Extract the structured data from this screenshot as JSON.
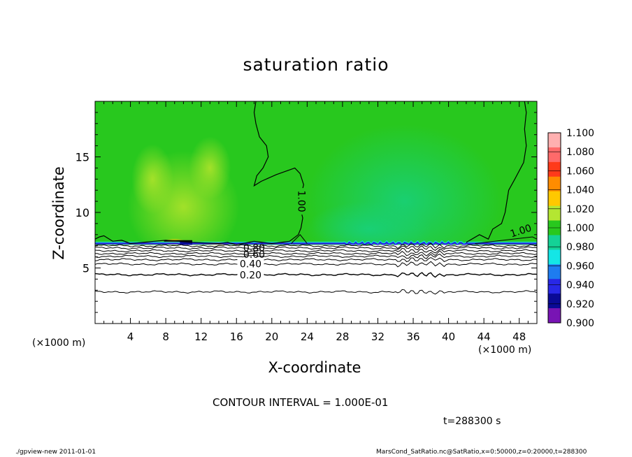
{
  "chart_data": {
    "type": "heatmap",
    "title": "saturation ratio",
    "xlabel": "X-coordinate",
    "ylabel": "Z-coordinate",
    "x_unit_label": "(×1000 m)",
    "xlim": [
      0,
      50
    ],
    "ylim": [
      0,
      20
    ],
    "x_ticks": [
      4,
      8,
      12,
      16,
      20,
      24,
      28,
      32,
      36,
      40,
      44,
      48
    ],
    "y_ticks": [
      5,
      10,
      15
    ],
    "colorbar": {
      "levels": [
        "1.100",
        "1.080",
        "1.060",
        "1.040",
        "1.020",
        "1.000",
        "0.980",
        "0.960",
        "0.940",
        "0.920",
        "0.900"
      ],
      "colors": [
        "#ffb0b0",
        "#ff6a6a",
        "#ff3a1a",
        "#ff8c00",
        "#ffc800",
        "#b4e632",
        "#28c81e",
        "#14d296",
        "#14e6e6",
        "#1e7cf0",
        "#2828e6",
        "#0a0a96",
        "#7814b4"
      ]
    },
    "field": {
      "surface_height": 7.2,
      "value_above_surface": 1.0,
      "value_right_region": 0.99,
      "value_left_region": 1.01
    },
    "contour_labels": [
      "1.00",
      "1.00",
      "0.80",
      "0.60",
      "0.40",
      "0.20"
    ],
    "contour_interval_text": "CONTOUR INTERVAL = 1.000E-01",
    "time_text": "t=288300 s"
  },
  "footer": {
    "left": "./gpview-new   2011-01-01",
    "right": "MarsCond_SatRatio.nc@SatRatio,x=0:50000,z=0:20000,t=288300"
  }
}
